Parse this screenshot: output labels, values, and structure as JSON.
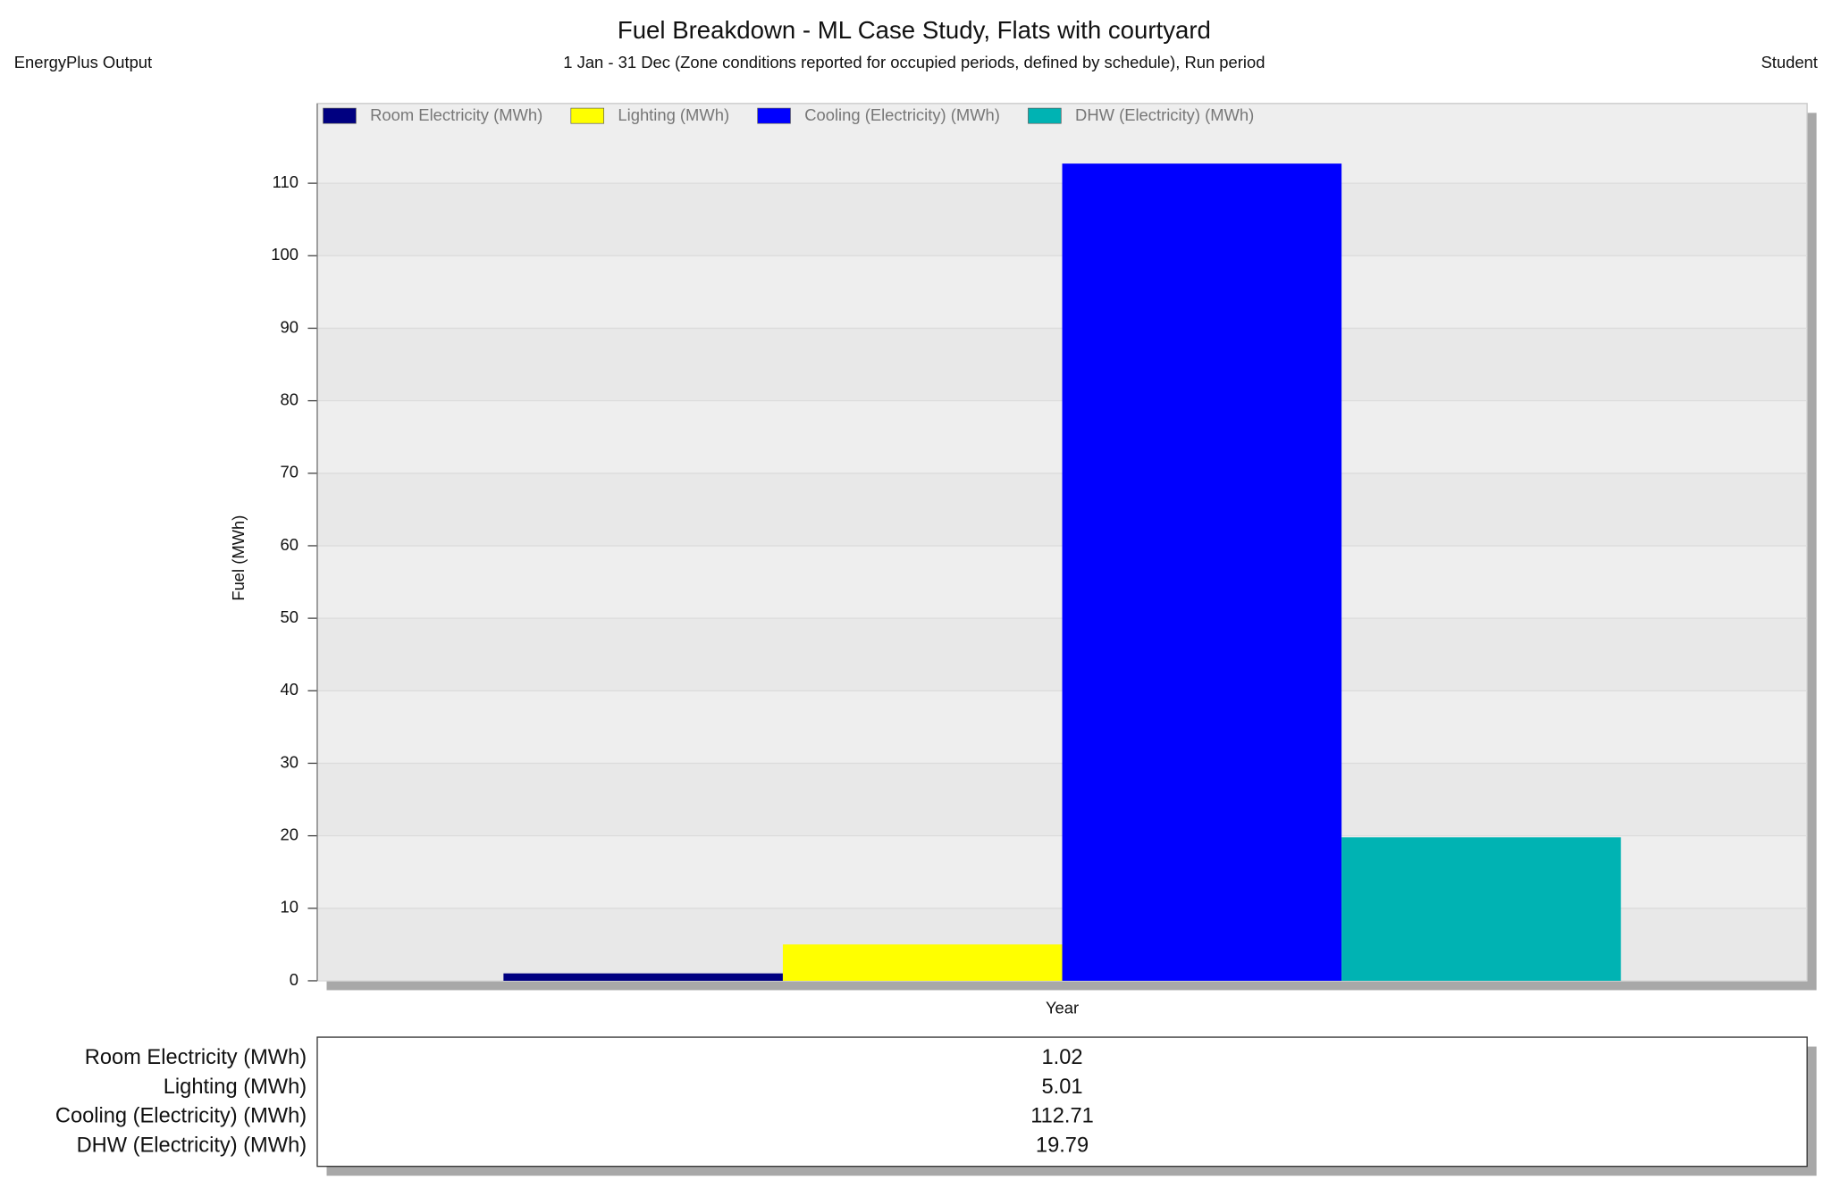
{
  "chart_data": {
    "type": "bar",
    "title": "Fuel Breakdown - ML Case Study, Flats with courtyard",
    "subtitle": "1 Jan - 31 Dec (Zone conditions reported for occupied periods, defined by schedule), Run period",
    "header_left": "EnergyPlus Output",
    "header_right": "Student",
    "y_label": "Fuel (MWh)",
    "categories": [
      "Year"
    ],
    "series": [
      {
        "name": "Room Electricity (MWh)",
        "color": "#000080",
        "values": [
          1.02
        ]
      },
      {
        "name": "Lighting (MWh)",
        "color": "#ffff00",
        "values": [
          5.01
        ]
      },
      {
        "name": "Cooling (Electricity) (MWh)",
        "color": "#0000ff",
        "values": [
          112.71
        ]
      },
      {
        "name": "DHW (Electricity) (MWh)",
        "color": "#00b3b3",
        "values": [
          19.79
        ]
      }
    ],
    "ylim": [
      0,
      121
    ],
    "yticks": [
      0,
      10,
      20,
      30,
      40,
      50,
      60,
      70,
      80,
      90,
      100,
      110
    ],
    "grid": true,
    "legend": "top-left"
  }
}
